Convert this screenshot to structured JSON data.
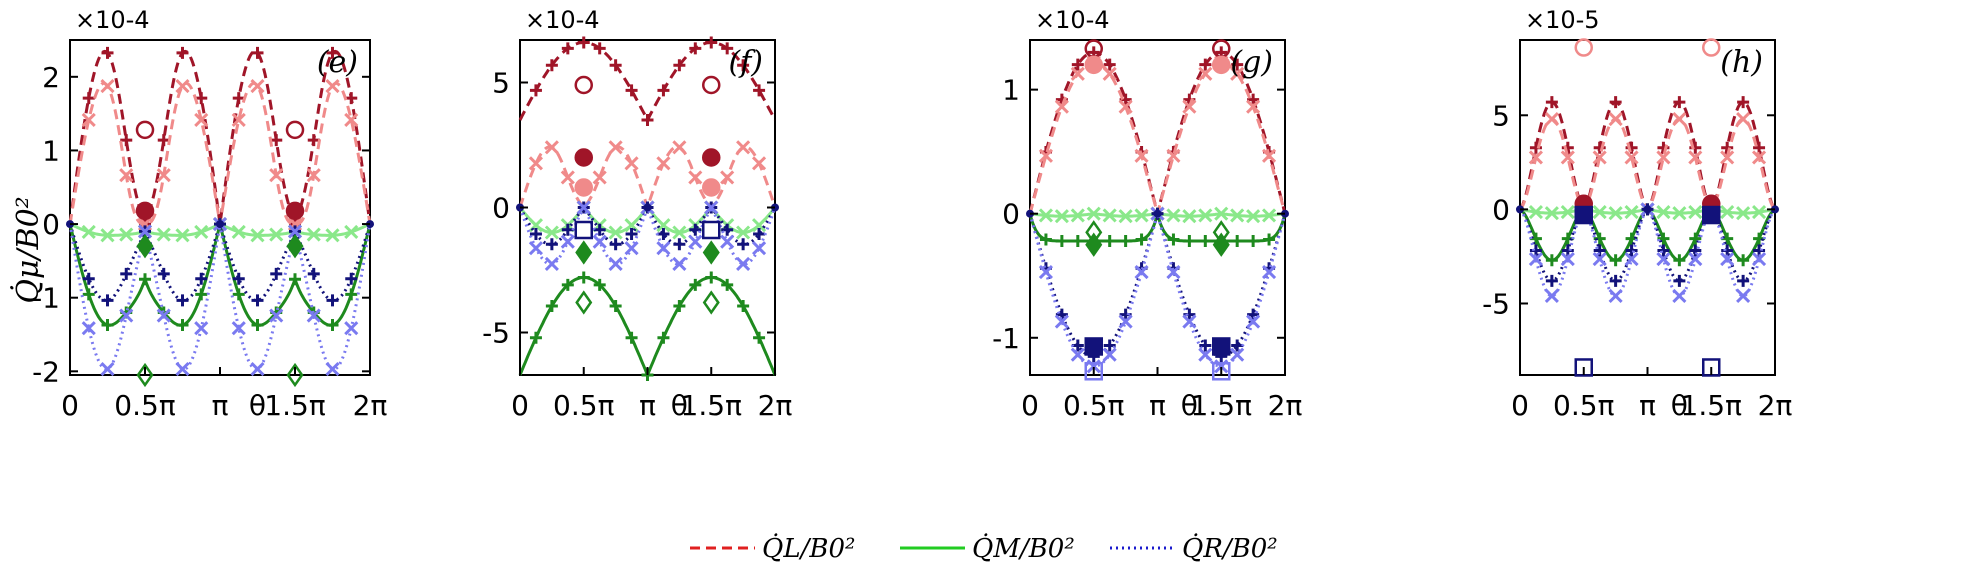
{
  "figure": {
    "ylabel": "Q̇μ/B0²",
    "xlabel": "θ",
    "x_ticks": [
      "0",
      "0.5π",
      "π",
      "θ",
      "1.5π",
      "2π"
    ],
    "legend": [
      {
        "label": "Q̇L/B0²",
        "color": "#e02020",
        "style": "dashed"
      },
      {
        "label": "Q̇M/B0²",
        "color": "#22cc22",
        "style": "solid"
      },
      {
        "label": "Q̇R/B0²",
        "color": "#1a1acc",
        "style": "dotted"
      }
    ]
  },
  "colors": {
    "L_dark": "#a01528",
    "L_light": "#f08a8a",
    "M_dark": "#1e8a1e",
    "M_light": "#8ae88a",
    "R_dark": "#12127a",
    "R_light": "#7a7af0"
  },
  "chart_data": [
    {
      "type": "line",
      "panel": "(e)",
      "exponent": "×10-4",
      "ylim": [
        -2.05,
        2.5
      ],
      "yticks": [
        -2,
        -1,
        0,
        1,
        2
      ],
      "ytick_labels": [
        "-2",
        "-1",
        "0",
        "1",
        "2"
      ],
      "series": [
        {
          "name": "L_dark",
          "style": "dashed",
          "peak": 2.42,
          "min": 0.9,
          "shape": "double"
        },
        {
          "name": "L_light",
          "style": "dashed",
          "peak": 2.0,
          "min": 0.0,
          "shape": "double"
        },
        {
          "name": "M_dark",
          "style": "solid",
          "peak": -1.35,
          "min": -0.75,
          "shape": "double_neg"
        },
        {
          "name": "M_light",
          "style": "solid",
          "peak": -0.15,
          "min": -0.1,
          "shape": "double_neg"
        },
        {
          "name": "R_dark",
          "style": "dotted",
          "peak": -1.05,
          "min": -0.1,
          "shape": "double_neg"
        },
        {
          "name": "R_light",
          "style": "dotted",
          "peak": -2.0,
          "min": -0.1,
          "shape": "double_neg"
        }
      ],
      "markers": [
        {
          "x": 0.5,
          "y": 1.28,
          "sym": "circle-open",
          "color": "L_dark"
        },
        {
          "x": 1.5,
          "y": 1.28,
          "sym": "circle-open",
          "color": "L_dark"
        },
        {
          "x": 0.5,
          "y": 0.18,
          "sym": "circle",
          "color": "L_dark"
        },
        {
          "x": 1.5,
          "y": 0.18,
          "sym": "circle",
          "color": "L_dark"
        },
        {
          "x": 0.5,
          "y": -0.3,
          "sym": "diamond",
          "color": "M_dark"
        },
        {
          "x": 1.5,
          "y": -0.3,
          "sym": "diamond",
          "color": "M_dark"
        },
        {
          "x": 0.5,
          "y": -2.05,
          "sym": "diamond-open",
          "color": "M_dark"
        },
        {
          "x": 1.5,
          "y": -2.05,
          "sym": "diamond-open",
          "color": "M_dark"
        }
      ]
    },
    {
      "type": "line",
      "panel": "(f)",
      "exponent": "×10-4",
      "ylim": [
        -6.7,
        6.7
      ],
      "yticks": [
        -5,
        0,
        5
      ],
      "ytick_labels": [
        "-5",
        "0",
        "5"
      ],
      "series": [
        {
          "name": "L_dark",
          "style": "dashed",
          "peak": 6.6,
          "min": 3.5,
          "shape": "single"
        },
        {
          "name": "L_light",
          "style": "dashed",
          "peak": 2.5,
          "min": 1.0,
          "shape": "double"
        },
        {
          "name": "M_light",
          "style": "solid",
          "peak": -1.0,
          "min": -0.5,
          "shape": "flat"
        },
        {
          "name": "M_dark",
          "style": "solid",
          "peak": -2.8,
          "min": -6.7,
          "shape": "single_neg"
        },
        {
          "name": "R_dark",
          "style": "dotted",
          "peak": -1.5,
          "min": 0.0,
          "shape": "double_neg"
        },
        {
          "name": "R_light",
          "style": "dotted",
          "peak": -2.3,
          "min": 0.0,
          "shape": "double_neg"
        }
      ],
      "markers": [
        {
          "x": 0.5,
          "y": 4.9,
          "sym": "circle-open",
          "color": "L_dark"
        },
        {
          "x": 1.5,
          "y": 4.9,
          "sym": "circle-open",
          "color": "L_dark"
        },
        {
          "x": 0.5,
          "y": 2.0,
          "sym": "circle",
          "color": "L_dark"
        },
        {
          "x": 1.5,
          "y": 2.0,
          "sym": "circle",
          "color": "L_dark"
        },
        {
          "x": 0.5,
          "y": 0.8,
          "sym": "circle",
          "color": "L_light"
        },
        {
          "x": 1.5,
          "y": 0.8,
          "sym": "circle",
          "color": "L_light"
        },
        {
          "x": 0.5,
          "y": -0.9,
          "sym": "square-open",
          "color": "R_dark"
        },
        {
          "x": 1.5,
          "y": -0.9,
          "sym": "square-open",
          "color": "R_dark"
        },
        {
          "x": 0.5,
          "y": -1.8,
          "sym": "diamond",
          "color": "M_dark"
        },
        {
          "x": 1.5,
          "y": -1.8,
          "sym": "diamond",
          "color": "M_dark"
        },
        {
          "x": 0.5,
          "y": -3.8,
          "sym": "diamond-open",
          "color": "M_dark"
        },
        {
          "x": 1.5,
          "y": -3.8,
          "sym": "diamond-open",
          "color": "M_dark"
        }
      ]
    },
    {
      "type": "line",
      "panel": "(g)",
      "exponent": "×10-4",
      "ylim": [
        -1.3,
        1.4
      ],
      "yticks": [
        -1,
        0,
        1
      ],
      "ytick_labels": [
        "-1",
        "0",
        "1"
      ],
      "series": [
        {
          "name": "L_dark",
          "style": "dashed",
          "peak": 1.3,
          "min": 0.0,
          "shape": "single"
        },
        {
          "name": "L_light",
          "style": "dashed",
          "peak": 1.22,
          "min": 0.0,
          "shape": "single"
        },
        {
          "name": "M_light",
          "style": "solid",
          "peak": -0.02,
          "min": 0.0,
          "shape": "flat"
        },
        {
          "name": "M_dark",
          "style": "solid",
          "peak": -0.22,
          "min": 0.0,
          "shape": "plateau"
        },
        {
          "name": "R_dark",
          "style": "dotted",
          "peak": -1.15,
          "min": 0.0,
          "shape": "single_neg"
        },
        {
          "name": "R_light",
          "style": "dotted",
          "peak": -1.23,
          "min": 0.0,
          "shape": "single_neg"
        }
      ],
      "markers": [
        {
          "x": 0.5,
          "y": 1.33,
          "sym": "circle-open",
          "color": "L_dark"
        },
        {
          "x": 1.5,
          "y": 1.33,
          "sym": "circle-open",
          "color": "L_dark"
        },
        {
          "x": 0.5,
          "y": 1.2,
          "sym": "circle",
          "color": "L_light"
        },
        {
          "x": 1.5,
          "y": 1.2,
          "sym": "circle",
          "color": "L_light"
        },
        {
          "x": 0.5,
          "y": -0.15,
          "sym": "diamond-open",
          "color": "M_dark"
        },
        {
          "x": 1.5,
          "y": -0.15,
          "sym": "diamond-open",
          "color": "M_dark"
        },
        {
          "x": 0.5,
          "y": -0.25,
          "sym": "diamond",
          "color": "M_dark"
        },
        {
          "x": 1.5,
          "y": -0.25,
          "sym": "diamond",
          "color": "M_dark"
        },
        {
          "x": 0.5,
          "y": -1.07,
          "sym": "square",
          "color": "R_dark"
        },
        {
          "x": 1.5,
          "y": -1.07,
          "sym": "square",
          "color": "R_dark"
        },
        {
          "x": 0.5,
          "y": -1.27,
          "sym": "square-open",
          "color": "R_light"
        },
        {
          "x": 1.5,
          "y": -1.27,
          "sym": "square-open",
          "color": "R_light"
        }
      ]
    },
    {
      "type": "line",
      "panel": "(h)",
      "exponent": "×10-5",
      "ylim": [
        -8.8,
        9.0
      ],
      "yticks": [
        -5,
        0,
        5
      ],
      "ytick_labels": [
        "-5",
        "0",
        "5"
      ],
      "series": [
        {
          "name": "L_dark",
          "style": "dashed",
          "peak": 5.7,
          "min": 0.0,
          "shape": "quad"
        },
        {
          "name": "L_light",
          "style": "dashed",
          "peak": 4.8,
          "min": 0.0,
          "shape": "quad"
        },
        {
          "name": "M_dark",
          "style": "solid",
          "peak": -2.7,
          "min": 0.0,
          "shape": "quad_neg"
        },
        {
          "name": "M_light",
          "style": "solid",
          "peak": -0.2,
          "min": 0.0,
          "shape": "flat"
        },
        {
          "name": "R_dark",
          "style": "dotted",
          "peak": -3.8,
          "min": 0.0,
          "shape": "quad_neg"
        },
        {
          "name": "R_light",
          "style": "dotted",
          "peak": -4.6,
          "min": 0.0,
          "shape": "quad_neg"
        }
      ],
      "markers": [
        {
          "x": 0.5,
          "y": 8.6,
          "sym": "circle-open",
          "color": "L_light"
        },
        {
          "x": 1.5,
          "y": 8.6,
          "sym": "circle-open",
          "color": "L_light"
        },
        {
          "x": 0.5,
          "y": 0.3,
          "sym": "circle",
          "color": "L_dark"
        },
        {
          "x": 1.5,
          "y": 0.3,
          "sym": "circle",
          "color": "L_dark"
        },
        {
          "x": 0.5,
          "y": -0.3,
          "sym": "square",
          "color": "R_dark"
        },
        {
          "x": 1.5,
          "y": -0.3,
          "sym": "square",
          "color": "R_dark"
        },
        {
          "x": 0.5,
          "y": -8.4,
          "sym": "square-open",
          "color": "R_dark"
        },
        {
          "x": 1.5,
          "y": -8.4,
          "sym": "square-open",
          "color": "R_dark"
        }
      ]
    }
  ]
}
